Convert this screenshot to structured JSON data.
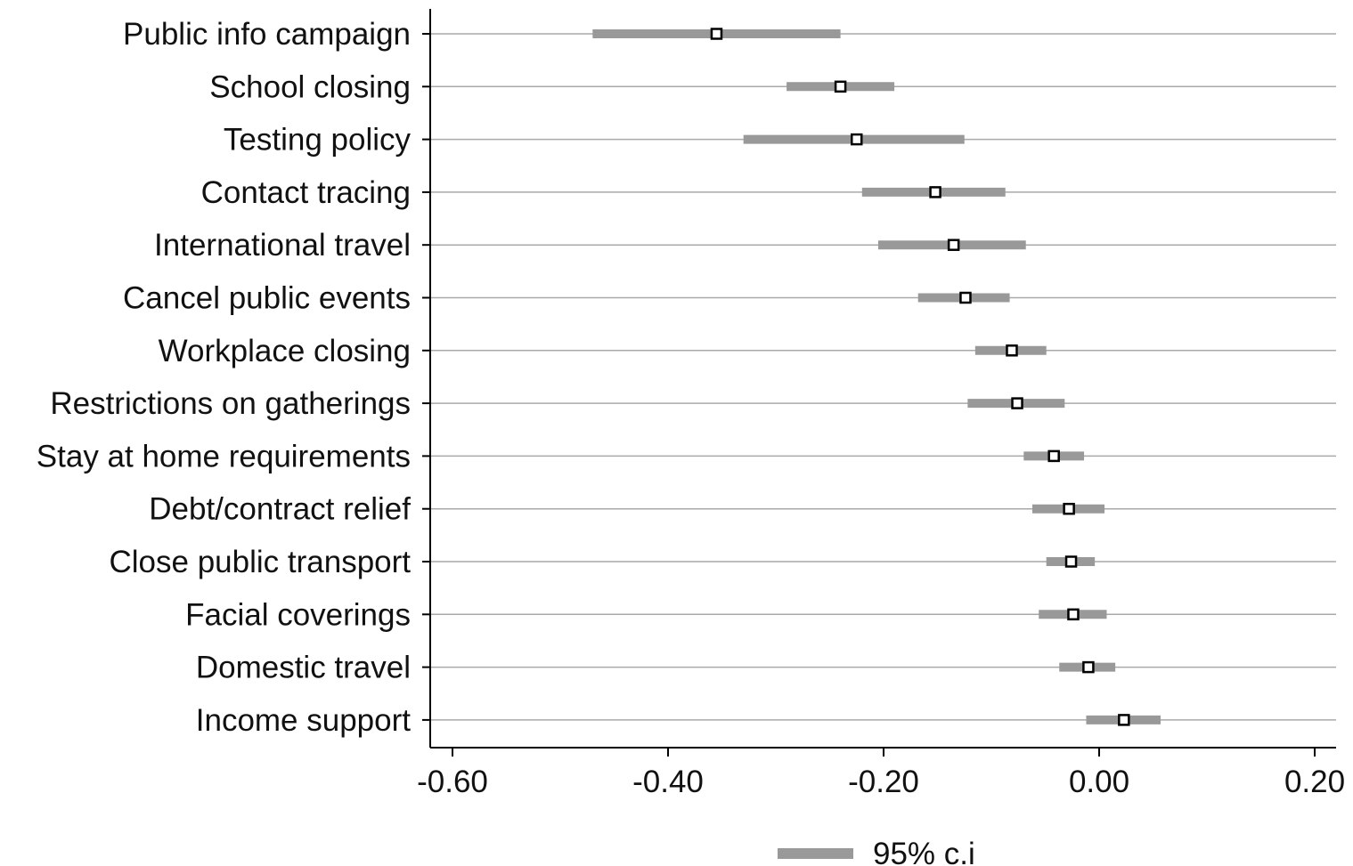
{
  "chart_data": {
    "type": "scatter",
    "subtype": "coefficient-plot",
    "orientation": "horizontal",
    "categories": [
      "Public info campaign",
      "School closing",
      "Testing policy",
      "Contact tracing",
      "International travel",
      "Cancel public events",
      "Workplace closing",
      "Restrictions on gatherings",
      "Stay at home requirements",
      "Debt/contract relief",
      "Close public transport",
      "Facial coverings",
      "Domestic travel",
      "Income support"
    ],
    "series": [
      {
        "name": "95% c.i",
        "type": "interval",
        "low": [
          -0.47,
          -0.29,
          -0.33,
          -0.22,
          -0.205,
          -0.168,
          -0.115,
          -0.122,
          -0.07,
          -0.062,
          -0.049,
          -0.056,
          -0.037,
          -0.012
        ],
        "high": [
          -0.24,
          -0.19,
          -0.125,
          -0.087,
          -0.068,
          -0.083,
          -0.049,
          -0.032,
          -0.014,
          0.005,
          -0.004,
          0.007,
          0.015,
          0.057
        ]
      },
      {
        "type": "point",
        "values": [
          -0.355,
          -0.24,
          -0.225,
          -0.152,
          -0.135,
          -0.124,
          -0.081,
          -0.076,
          -0.042,
          -0.028,
          -0.026,
          -0.024,
          -0.01,
          0.023
        ]
      }
    ],
    "x_ticks": [
      -0.6,
      -0.4,
      -0.2,
      0.0,
      0.2
    ],
    "x_tick_labels": [
      "-0.60",
      "-0.40",
      "-0.20",
      "0.00",
      "0.20"
    ],
    "xlim": [
      -0.62,
      0.22
    ],
    "grid": "horizontal lines at each category",
    "legend": {
      "position": "bottom-center",
      "entries": [
        "95% c.i"
      ]
    },
    "colors": {
      "ci": "#999999",
      "marker_edge": "#000000",
      "marker_fill": "#ffffff",
      "grid": "#a9a9a9",
      "axis": "#000000"
    },
    "title": "",
    "xlabel": "",
    "ylabel": ""
  }
}
